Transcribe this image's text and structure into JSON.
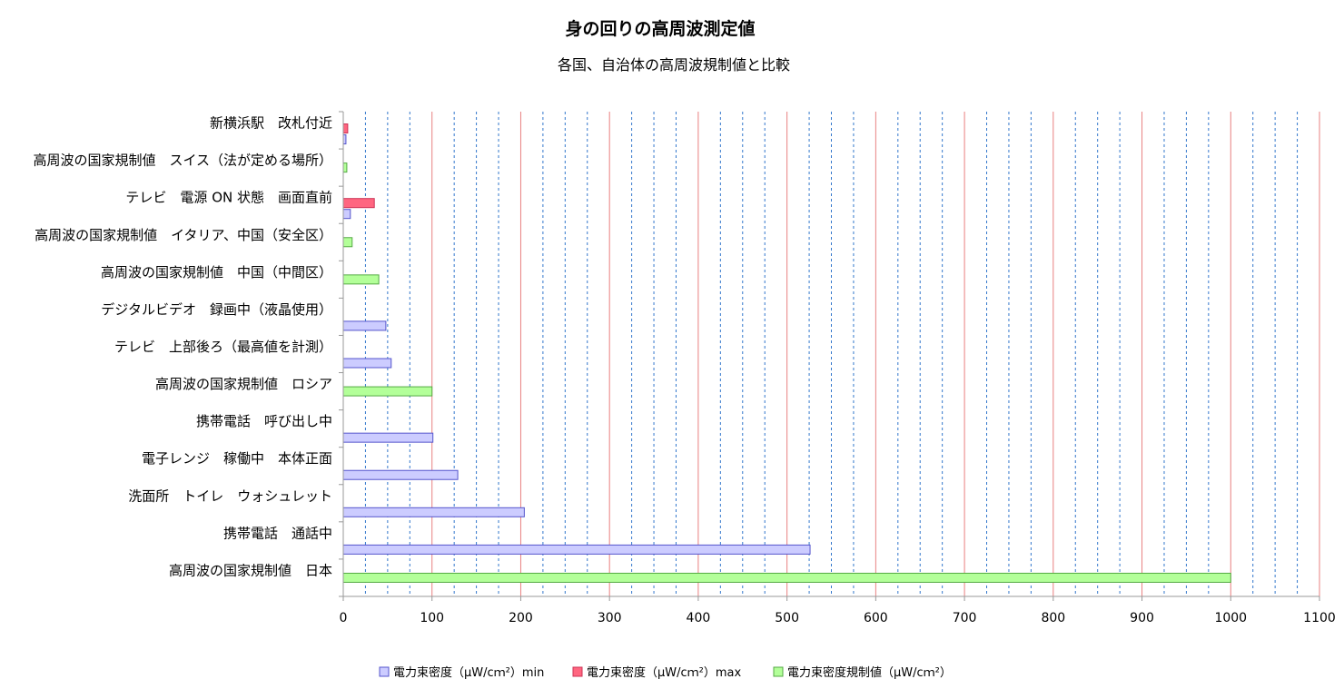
{
  "chart_data": {
    "type": "bar",
    "orientation": "horizontal",
    "title": "身の回りの高周波測定値",
    "subtitle": "各国、自治体の高周波規制値と比較",
    "categories": [
      "新横浜駅　改札付近",
      "高周波の国家規制値　スイス（法が定める場所）",
      "テレビ　電源 ON 状態　画面直前",
      "高周波の国家規制値　イタリア、中国（安全区）",
      "高周波の国家規制値　中国（中間区）",
      "デジタルビデオ　録画中（液晶使用）",
      "テレビ　上部後ろ（最高値を計測）",
      "高周波の国家規制値　ロシア",
      "携帯電話　呼び出し中",
      "電子レンジ　稼働中　本体正面",
      "洗面所　トイレ　ウォシュレット",
      "携帯電話　通話中",
      "高周波の国家規制値　日本"
    ],
    "series": [
      {
        "name": "電力束密度（μW/cｍ²）min",
        "color": "#ccccff",
        "stroke": "#5555cc",
        "values": [
          3,
          null,
          8,
          null,
          null,
          48,
          54,
          null,
          101,
          129,
          204,
          526,
          null
        ]
      },
      {
        "name": "電力束密度（μW/cｍ²）max",
        "color": "#ff6680",
        "stroke": "#cc3355",
        "values": [
          5,
          null,
          35,
          null,
          null,
          null,
          null,
          null,
          null,
          null,
          null,
          null,
          null
        ]
      },
      {
        "name": "電力束密度規制値（μW/cｍ²）",
        "color": "#b3ff99",
        "stroke": "#55aa44",
        "values": [
          null,
          4,
          null,
          10,
          40,
          null,
          null,
          100,
          null,
          null,
          null,
          null,
          1000
        ]
      }
    ],
    "xlim": [
      0,
      1100
    ],
    "xticks": [
      "0",
      "100",
      "200",
      "300",
      "400",
      "500",
      "600",
      "700",
      "800",
      "900",
      "1000",
      "1100"
    ],
    "grid": {
      "major_color": "#e88080",
      "minor_color": "#3377cc"
    },
    "legend_position": "bottom"
  }
}
